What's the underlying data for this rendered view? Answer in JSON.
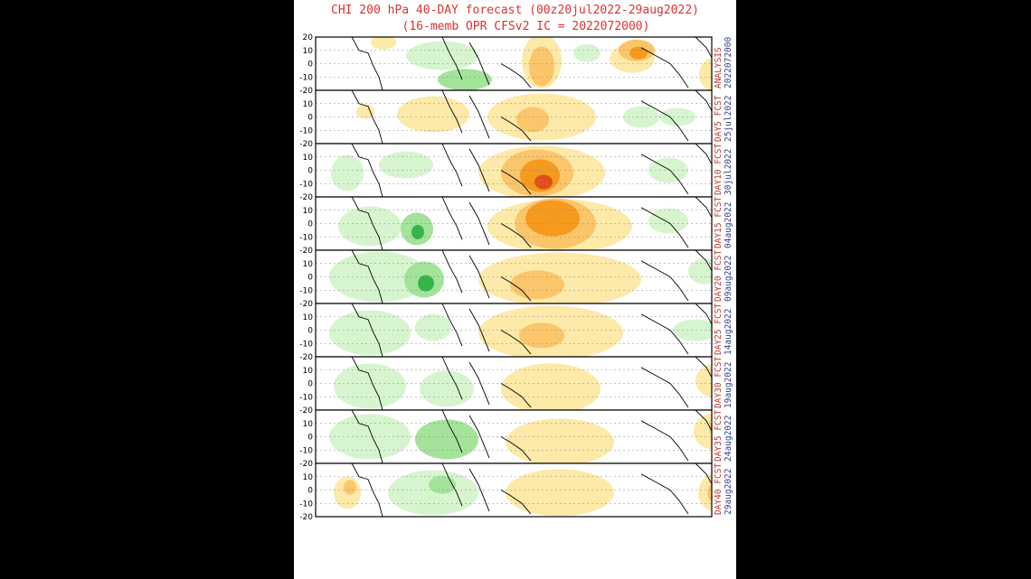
{
  "title": {
    "line1": "CHI 200 hPa 40-DAY forecast (00z20jul2022-29aug2022)",
    "line2": "(16-memb OPR CFSv2 IC = 2022072000)"
  },
  "lat_tick_labels": [
    "20",
    "10",
    "0",
    "-10",
    "-20"
  ],
  "panels": [
    {
      "label_top": "ANALYSIS",
      "label_bottom": "2022072000"
    },
    {
      "label_top": "DAY5 FCST",
      "label_bottom": "25jul2022"
    },
    {
      "label_top": "DAY10 FCST",
      "label_bottom": "30jul2022"
    },
    {
      "label_top": "DAY15 FCST",
      "label_bottom": "04aug2022"
    },
    {
      "label_top": "DAY20 FCST",
      "label_bottom": "09aug2022"
    },
    {
      "label_top": "DAY25 FCST",
      "label_bottom": "14aug2022"
    },
    {
      "label_top": "DAY30 FCST",
      "label_bottom": "19aug2022"
    },
    {
      "label_top": "DAY35 FCST",
      "label_bottom": "24aug2022"
    },
    {
      "label_top": "DAY40 FCST",
      "label_bottom": "29aug2022"
    }
  ],
  "colors": {
    "green_light": "#d6f5cf",
    "green_mid": "#a4e39a",
    "green_dark": "#35b547",
    "orange_light": "#fde9a8",
    "orange_mid": "#fbc56a",
    "orange_strong": "#f59a1e",
    "red": "#e0501a",
    "title_red": "#e03030",
    "label_red": "#c0392b",
    "label_blue": "#34408c"
  }
}
